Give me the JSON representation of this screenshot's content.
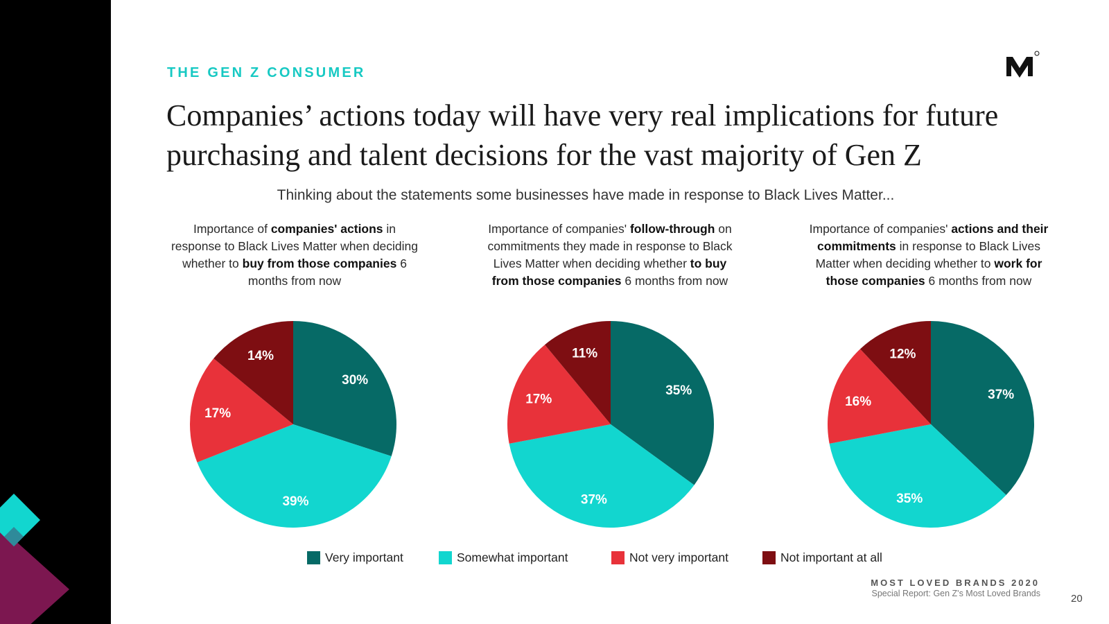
{
  "section_label": "THE GEN Z CONSUMER",
  "headline": {
    "line1": "Companies’ actions today will have very real implications for future",
    "line2": "purchasing and talent decisions for the vast majority of Gen Z"
  },
  "subtitle": "Thinking about the statements some businesses have made in response to Black Lives Matter...",
  "colors": {
    "very_important": "#066a66",
    "somewhat_important": "#12d6cf",
    "not_very_important": "#e8323a",
    "not_important_at_all": "#7e0e12",
    "accent_teal": "#17c9c3",
    "accent_magenta": "#7c1750"
  },
  "chart_data": [
    {
      "type": "pie",
      "title_parts": [
        {
          "t": "Importance of ",
          "b": false
        },
        {
          "t": "companies' actions",
          "b": true
        },
        {
          "t": " in response to Black Lives Matter when deciding whether to ",
          "b": false
        },
        {
          "t": "buy from those companies",
          "b": true
        },
        {
          "t": " 6 months from now",
          "b": false
        }
      ],
      "categories": [
        "Very important",
        "Somewhat important",
        "Not very important",
        "Not important at all"
      ],
      "values": [
        30,
        39,
        17,
        14
      ],
      "labels": [
        "30%",
        "39%",
        "17%",
        "14%"
      ]
    },
    {
      "type": "pie",
      "title_parts": [
        {
          "t": "Importance of companies' ",
          "b": false
        },
        {
          "t": "follow-through",
          "b": true
        },
        {
          "t": " on commitments they made in response to Black Lives Matter when deciding whether ",
          "b": false
        },
        {
          "t": "to buy from those companies",
          "b": true
        },
        {
          "t": " 6 months from now",
          "b": false
        }
      ],
      "categories": [
        "Very important",
        "Somewhat important",
        "Not very important",
        "Not important at all"
      ],
      "values": [
        35,
        37,
        17,
        11
      ],
      "labels": [
        "35%",
        "37%",
        "17%",
        "11%"
      ]
    },
    {
      "type": "pie",
      "title_parts": [
        {
          "t": "Importance of companies' ",
          "b": false
        },
        {
          "t": "actions and their commitments",
          "b": true
        },
        {
          "t": " in response to Black Lives Matter when deciding whether to ",
          "b": false
        },
        {
          "t": "work for those companies",
          "b": true
        },
        {
          "t": " 6 months from now",
          "b": false
        }
      ],
      "categories": [
        "Very important",
        "Somewhat important",
        "Not very important",
        "Not important at all"
      ],
      "values": [
        37,
        35,
        16,
        12
      ],
      "labels": [
        "37%",
        "35%",
        "16%",
        "12%"
      ]
    }
  ],
  "legend": [
    {
      "label": "Very important",
      "color": "#066a66"
    },
    {
      "label": "Somewhat important",
      "color": "#12d6cf"
    },
    {
      "label": "Not very important",
      "color": "#e8323a"
    },
    {
      "label": "Not important at all",
      "color": "#7e0e12"
    }
  ],
  "footer": {
    "title": "MOST LOVED BRANDS 2020",
    "subtitle": "Special Report: Gen Z's Most Loved Brands"
  },
  "page_number": "20"
}
